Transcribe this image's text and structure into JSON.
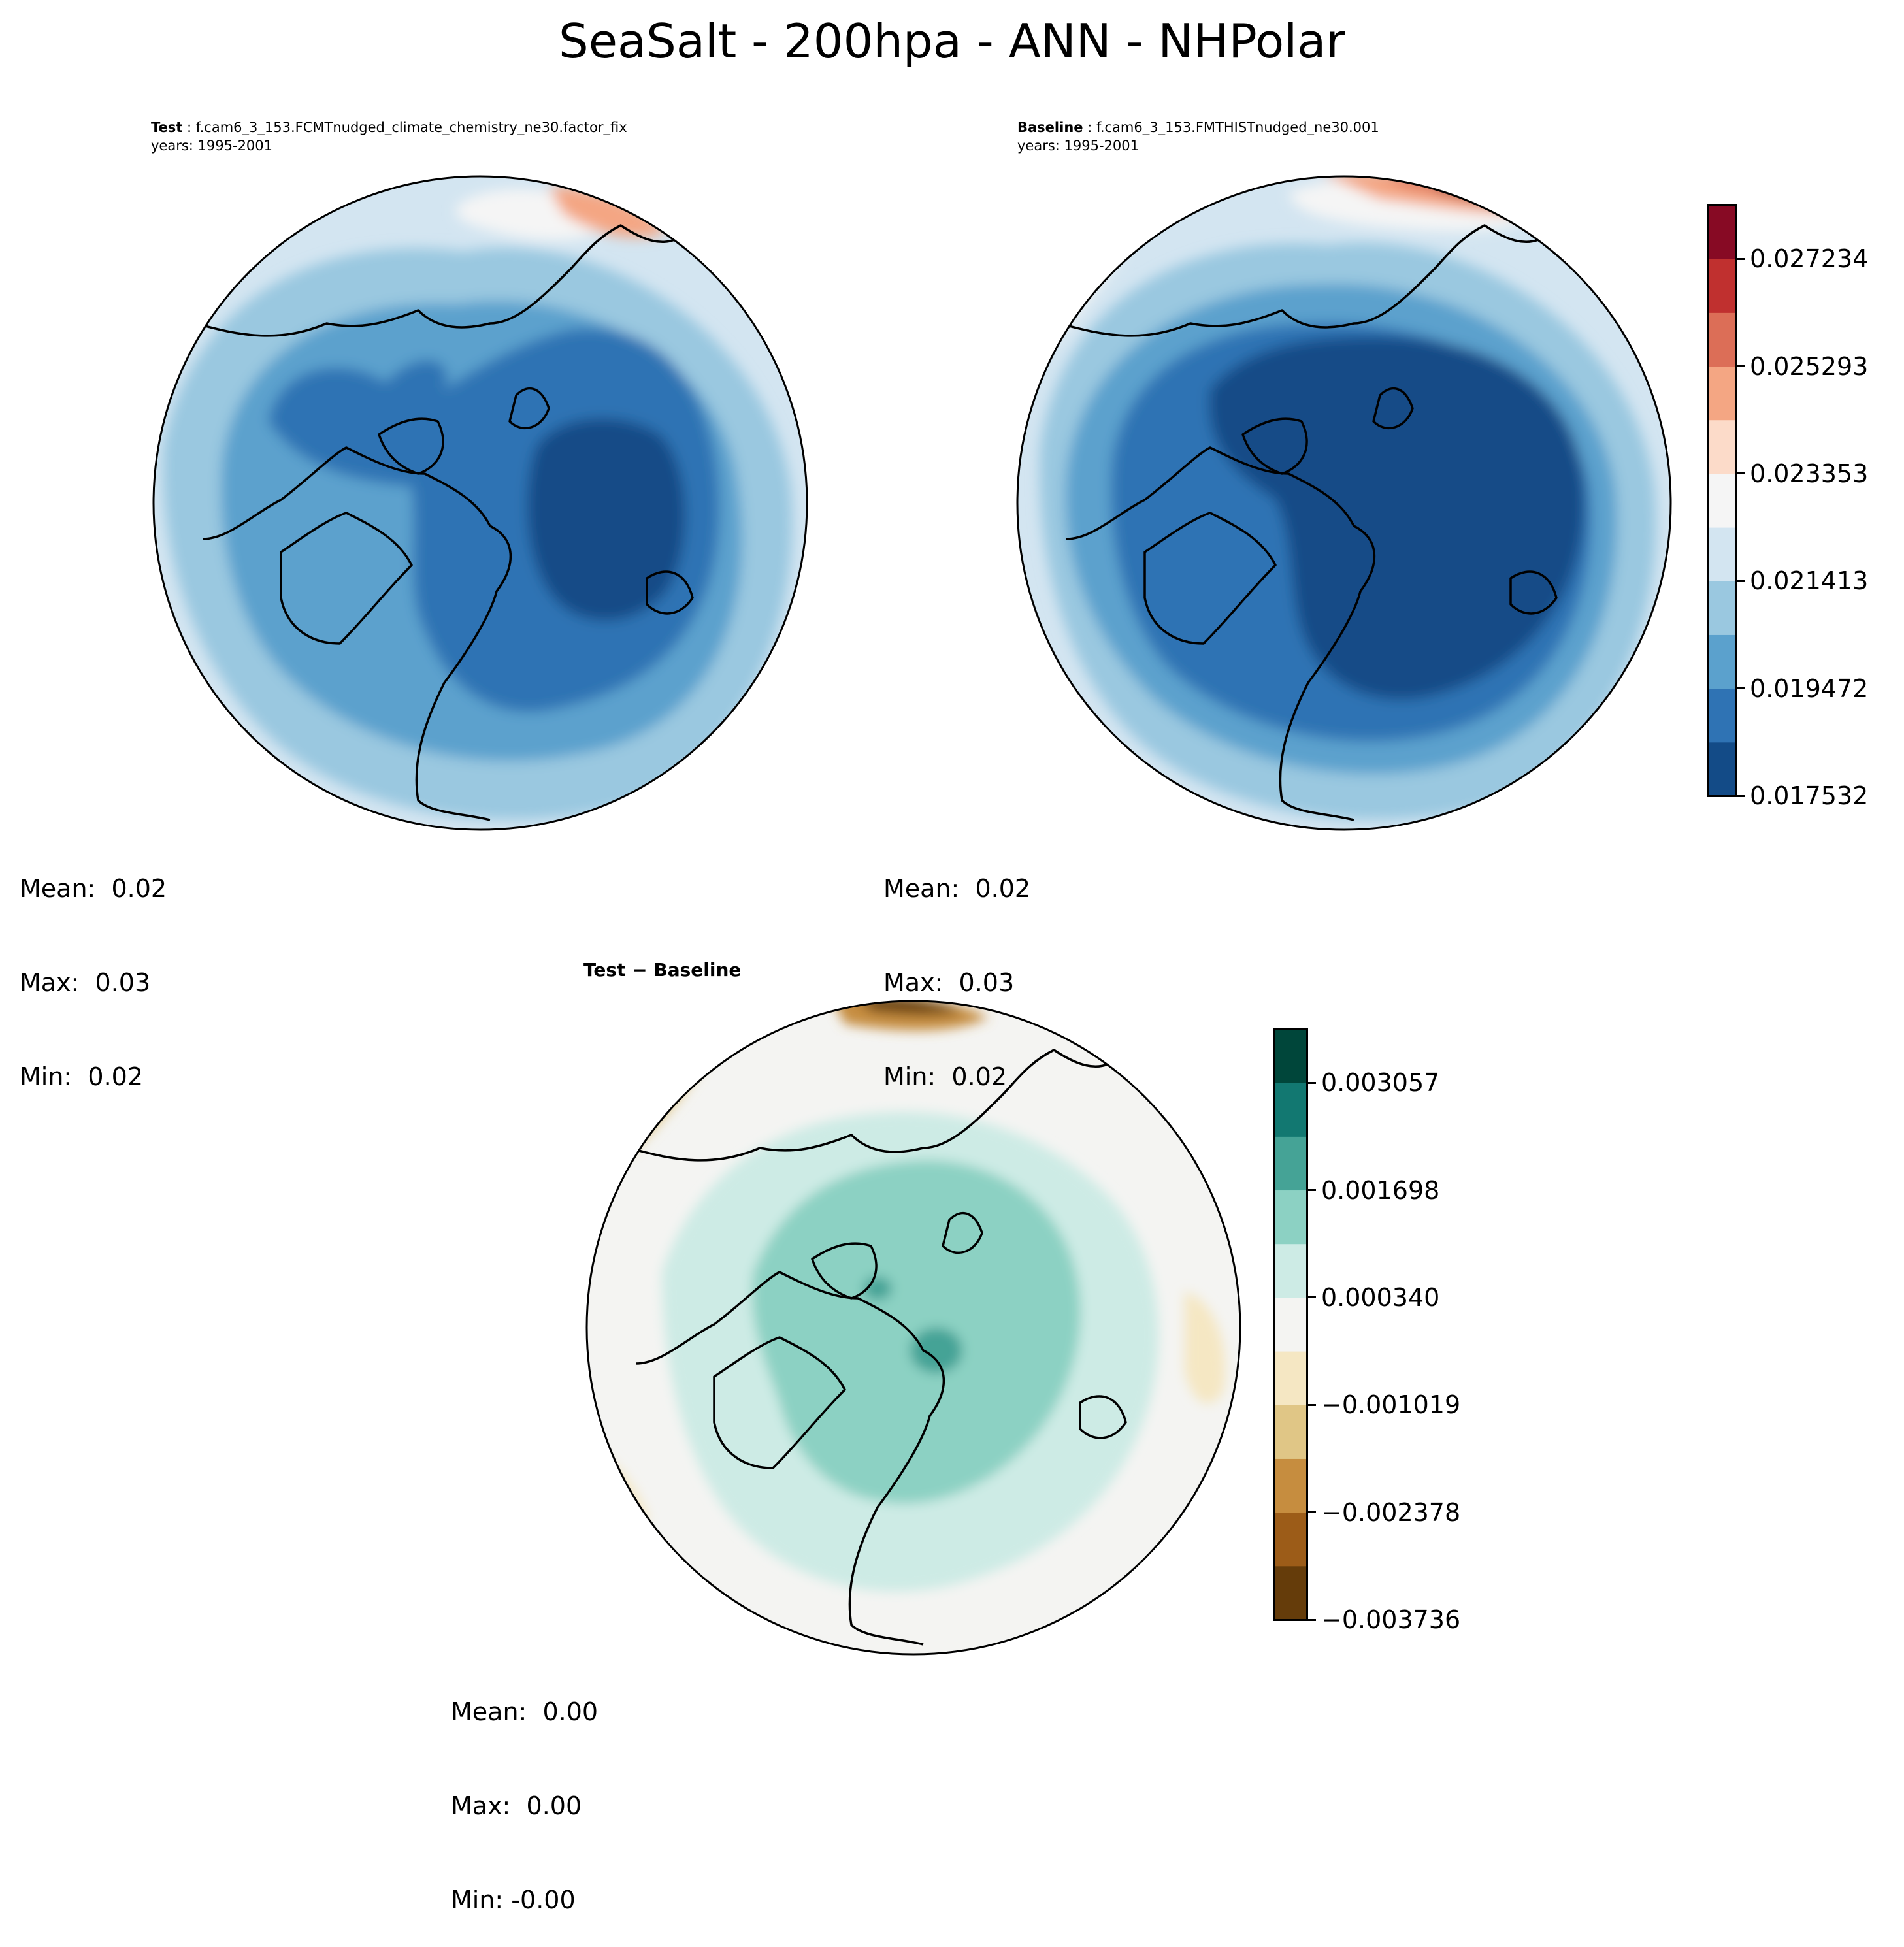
{
  "figure": {
    "title": "SeaSalt - 200hpa - ANN - NHPolar"
  },
  "panels": {
    "test": {
      "label": "Test",
      "case": "f.cam6_3_153.FCMTnudged_climate_chemistry_ne30.factor_fix",
      "years": "years: 1995-2001",
      "stats": {
        "mean": "Mean:  0.02",
        "max": "Max:  0.03",
        "min": "Min:  0.02"
      }
    },
    "baseline": {
      "label": "Baseline",
      "case": "f.cam6_3_153.FMTHISTnudged_ne30.001",
      "years": "years: 1995-2001",
      "stats": {
        "mean": "Mean:  0.02",
        "max": "Max:  0.03",
        "min": "Min:  0.02"
      }
    },
    "diff": {
      "title": "Test − Baseline",
      "stats": {
        "mean": "Mean:  0.00",
        "max": "Max:  0.00",
        "min": "Min: -0.00"
      }
    }
  },
  "colorbars": {
    "main": {
      "colors": [
        "#134b87",
        "#2f73b4",
        "#5ba1cd",
        "#9ac8e0",
        "#d3e5f1",
        "#f5f5f5",
        "#fcdbc9",
        "#f4a683",
        "#dc6e57",
        "#c0302f",
        "#870a24"
      ],
      "tick_labels": [
        "0.017532",
        "0.019472",
        "0.021413",
        "0.023353",
        "0.025293",
        "0.027234"
      ]
    },
    "diff": {
      "colors": [
        "#653c0a",
        "#9c5c18",
        "#c68d3f",
        "#e0c686",
        "#f5e7c3",
        "#f4f4f2",
        "#cdebe5",
        "#8cd1c3",
        "#45a396",
        "#127871",
        "#00463a"
      ],
      "tick_labels": [
        "−0.003736",
        "−0.002378",
        "−0.001019",
        "0.000340",
        "0.001698",
        "0.003057"
      ]
    }
  }
}
